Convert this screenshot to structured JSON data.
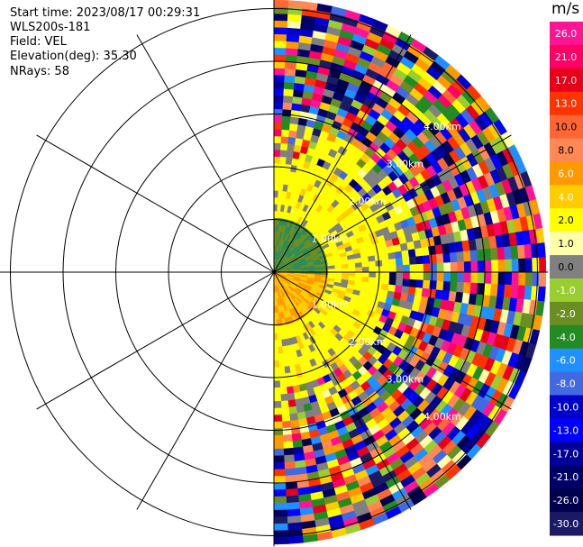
{
  "header": {
    "start_time": "Start time: 2023/08/17 00:29:31",
    "instrument": "WLS200s-181",
    "field": "Field: VEL",
    "elevation": "Elevation(deg): 35.30",
    "nrays": "NRays: 58"
  },
  "range_rings": {
    "labels": [
      "1.00km",
      "2.00km",
      "3.00km",
      "4.00km"
    ]
  },
  "colorbar": {
    "unit": "m/s",
    "ticks": [
      "26.0",
      "21.0",
      "17.0",
      "13.0",
      "10.0",
      "8.0",
      "6.0",
      "4.0",
      "2.0",
      "1.0",
      "0.0",
      "-1.0",
      "-2.0",
      "-4.0",
      "-6.0",
      "-8.0",
      "-10.0",
      "-13.0",
      "-17.0",
      "-21.0",
      "-26.0",
      "-30.0"
    ],
    "colors": [
      "#ff1493",
      "#ff0066",
      "#e8001a",
      "#ff3300",
      "#ff6633",
      "#ff8855",
      "#ff9900",
      "#ffcc00",
      "#ffff00",
      "#ffffaa",
      "#808080",
      "#9acd32",
      "#6b8e23",
      "#228b22",
      "#1e90ff",
      "#4169e1",
      "#0000cd",
      "#0000ff",
      "#000099",
      "#000066",
      "#00004d",
      "#1a1a66"
    ]
  }
}
